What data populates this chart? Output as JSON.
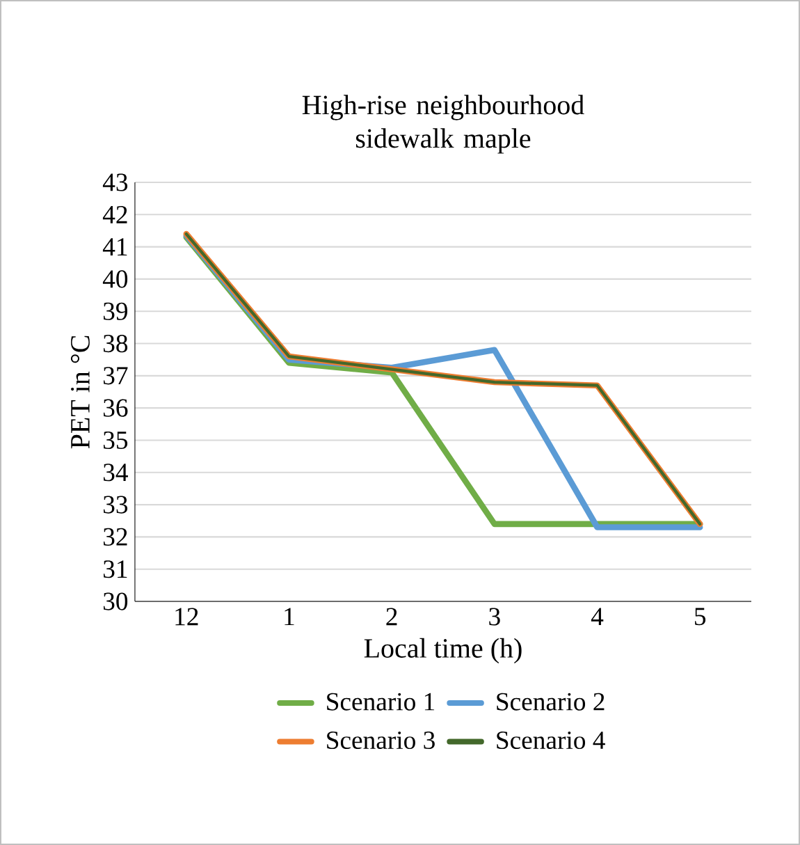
{
  "chart_data": {
    "type": "line",
    "title": "High-rise neighbourhood sidewalk maple",
    "xlabel": "Local time (h)",
    "ylabel": "PET in °C",
    "categories": [
      "12",
      "1",
      "2",
      "3",
      "4",
      "5"
    ],
    "series": [
      {
        "name": "Scenario 1",
        "color": "#70ad47",
        "values": [
          41.3,
          37.4,
          37.1,
          32.4,
          32.4,
          32.4
        ]
      },
      {
        "name": "Scenario 2",
        "color": "#5b9bd5",
        "values": [
          41.35,
          37.5,
          37.25,
          37.8,
          32.3,
          32.3
        ]
      },
      {
        "name": "Scenario 3",
        "color": "#ed7d31",
        "values": [
          41.4,
          37.6,
          37.2,
          36.8,
          36.7,
          32.4
        ]
      },
      {
        "name": "Scenario 4",
        "color": "#43682b",
        "values": [
          41.4,
          37.6,
          37.2,
          36.8,
          36.7,
          32.4
        ]
      }
    ],
    "ylim": [
      30,
      43
    ],
    "yticks": [
      30,
      31,
      32,
      33,
      34,
      35,
      36,
      37,
      38,
      39,
      40,
      41,
      42,
      43
    ],
    "grid": "y",
    "legend": "bottom",
    "marker": "none",
    "line_style": "solid"
  }
}
